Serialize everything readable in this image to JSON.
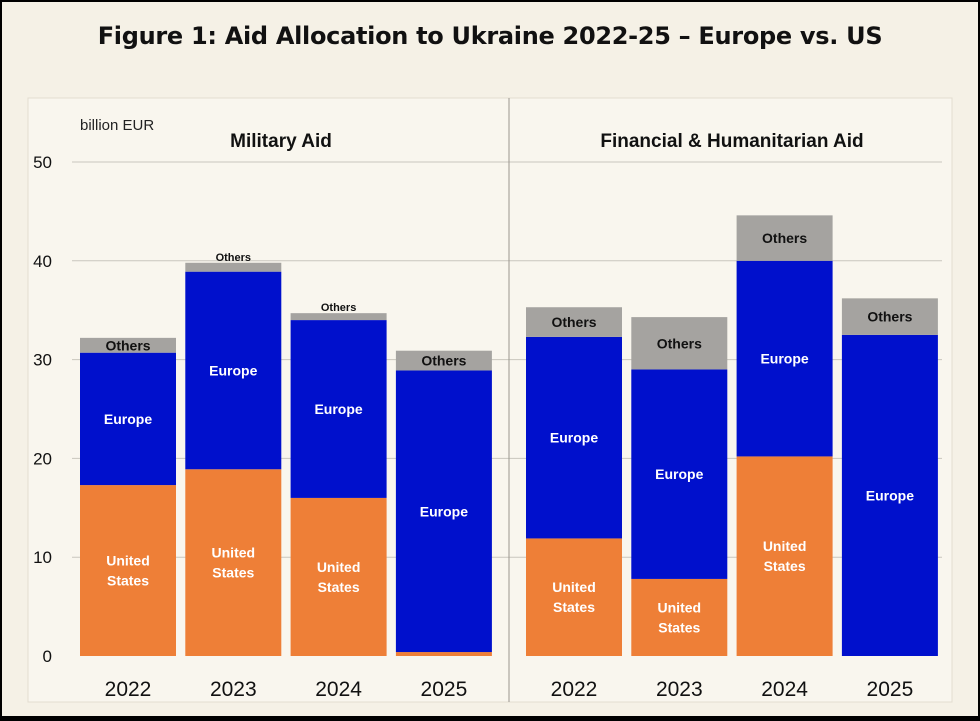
{
  "figure": {
    "title": "Figure 1: Aid Allocation to Ukraine 2022-25 – Europe vs. US"
  },
  "colors": {
    "background": "#f5f1e6",
    "plot_area": "#f9f6ee",
    "united_states": "#ee7f37",
    "europe": "#0010cc",
    "others": "#a5a3a0",
    "grid": "#c9c6bd"
  },
  "chart_data": [
    {
      "type": "bar",
      "stacked": true,
      "title": "Military Aid",
      "ylabel": "billion EUR",
      "ylim": [
        0,
        50
      ],
      "yticks": [
        0,
        10,
        20,
        30,
        40,
        50
      ],
      "grid": true,
      "categories": [
        "2022",
        "2023",
        "2024",
        "2025"
      ],
      "series": [
        {
          "name": "United States",
          "label": "United States",
          "values": [
            17.3,
            18.9,
            16.0,
            0.4
          ]
        },
        {
          "name": "Europe",
          "label": "Europe",
          "values": [
            13.4,
            20.0,
            18.0,
            28.5
          ]
        },
        {
          "name": "Others",
          "label": "Others",
          "values": [
            1.5,
            0.9,
            0.7,
            2.0
          ]
        }
      ]
    },
    {
      "type": "bar",
      "stacked": true,
      "title": "Financial & Humanitarian Aid",
      "ylim": [
        0,
        50
      ],
      "yticks": [
        0,
        10,
        20,
        30,
        40,
        50
      ],
      "grid": true,
      "categories": [
        "2022",
        "2023",
        "2024",
        "2025"
      ],
      "series": [
        {
          "name": "United States",
          "label": "United States",
          "values": [
            11.9,
            7.8,
            20.2,
            0
          ]
        },
        {
          "name": "Europe",
          "label": "Europe",
          "values": [
            20.4,
            21.2,
            19.8,
            32.5
          ]
        },
        {
          "name": "Others",
          "label": "Others",
          "values": [
            3.0,
            5.3,
            4.6,
            3.7
          ]
        }
      ]
    }
  ]
}
